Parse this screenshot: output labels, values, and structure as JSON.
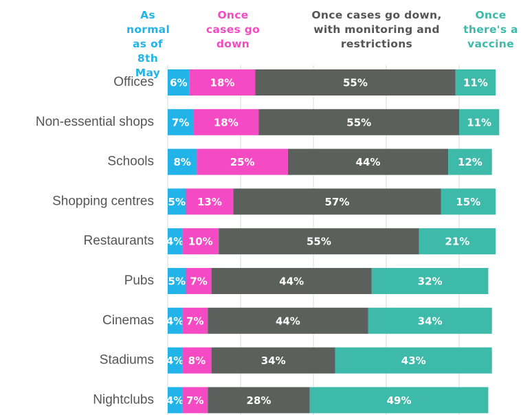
{
  "chart_data": {
    "type": "stacked-bar-horizontal",
    "categories": [
      "Offices",
      "Non-essential shops",
      "Schools",
      "Shopping centres",
      "Restaurants",
      "Pubs",
      "Cinemas",
      "Stadiums",
      "Nightclubs"
    ],
    "series": [
      {
        "name": "As normal as of 8th May",
        "color": "#22b4e8",
        "values": [
          6,
          7,
          8,
          5,
          4,
          5,
          4,
          4,
          4
        ],
        "value_labels": [
          "6%",
          "7%",
          "8%",
          "5%",
          "4%",
          "5%",
          "4%",
          "4%",
          "4%"
        ]
      },
      {
        "name": "Once cases go down",
        "color": "#f44bc4",
        "values": [
          18,
          18,
          25,
          13,
          10,
          7,
          7,
          8,
          7
        ],
        "value_labels": [
          "18%",
          "18%",
          "25%",
          "13%",
          "10%",
          "7%",
          "7%",
          "8%",
          "7%"
        ]
      },
      {
        "name": "Once cases go down, with monitoring and restrictions",
        "color": "#5b605d",
        "values": [
          55,
          55,
          44,
          57,
          55,
          44,
          44,
          34,
          28
        ],
        "value_labels": [
          "55%",
          "55%",
          "44%",
          "57%",
          "55%",
          "44%",
          "44%",
          "34%",
          "28%"
        ]
      },
      {
        "name": "Once there's a vaccine",
        "color": "#3dbaa9",
        "values": [
          11,
          11,
          12,
          15,
          21,
          32,
          34,
          43,
          49
        ],
        "value_labels": [
          "11%",
          "11%",
          "12%",
          "15%",
          "21%",
          "32%",
          "34%",
          "43%",
          "49%"
        ]
      }
    ],
    "xlim": [
      0,
      90
    ],
    "xticks": [
      0,
      20,
      40,
      60,
      80
    ],
    "grid": true
  }
}
